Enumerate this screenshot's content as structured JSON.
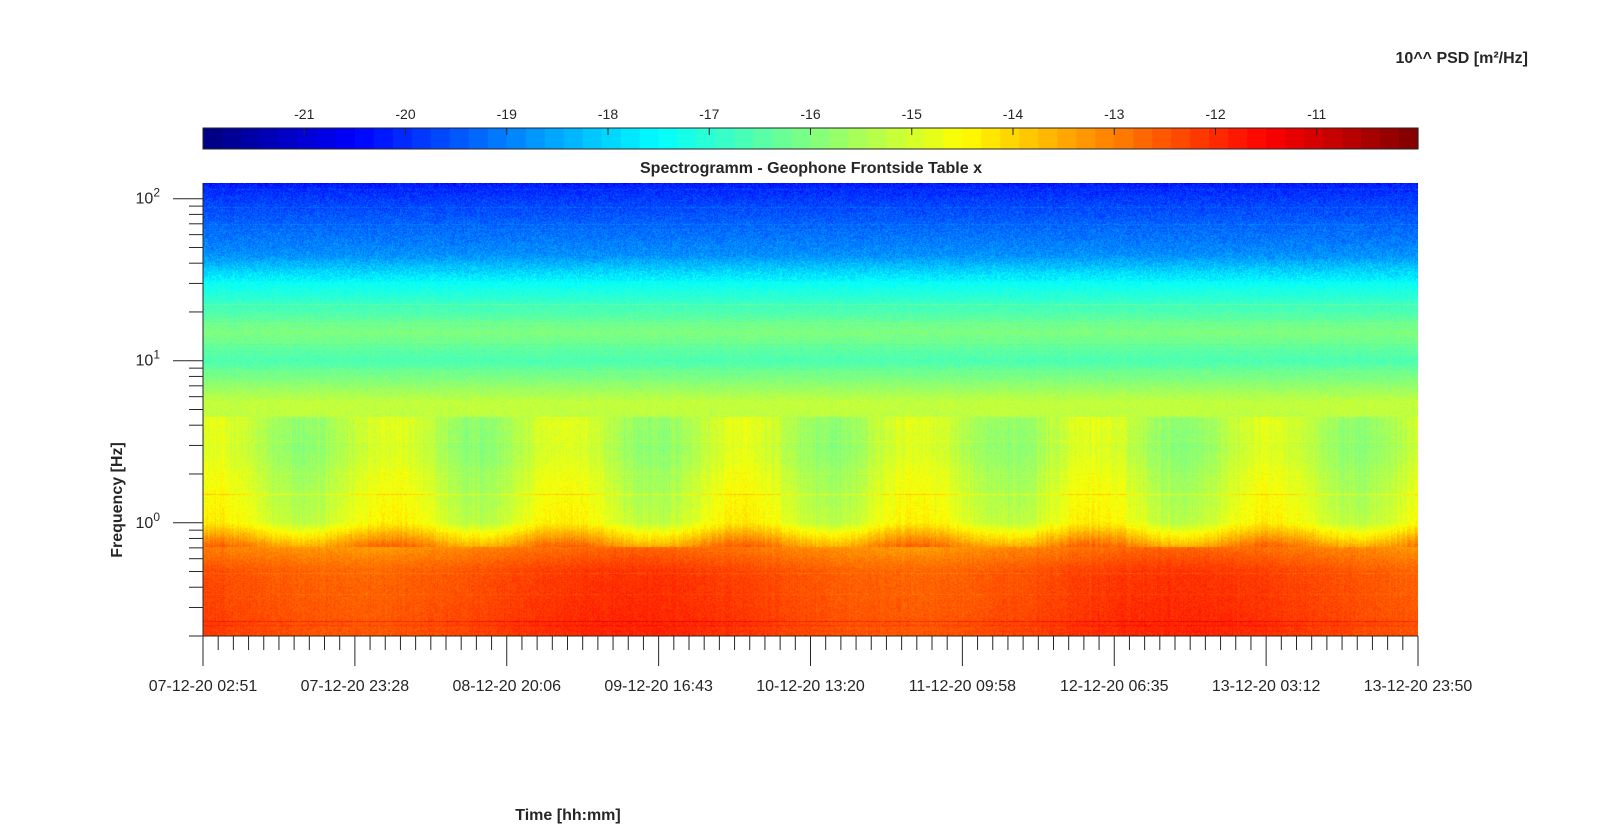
{
  "chart_data": {
    "type": "heatmap",
    "title": "Spectrogramm - Geophone Frontside Table x",
    "xlabel": "Time [hh:mm]",
    "ylabel": "Frequency [Hz]",
    "y_scale": "log",
    "y_range_hz": [
      0.2,
      125
    ],
    "y_tick_labels": [
      {
        "base": "10",
        "exp": "0",
        "value": 1
      },
      {
        "base": "10",
        "exp": "1",
        "value": 10
      },
      {
        "base": "10",
        "exp": "2",
        "value": 100
      }
    ],
    "x_range": [
      "07-12-20 02:51",
      "13-12-20 23:50"
    ],
    "x_tick_labels": [
      "07-12-20 02:51",
      "07-12-20 23:28",
      "08-12-20 20:06",
      "09-12-20 16:43",
      "10-12-20 13:20",
      "11-12-20 09:58",
      "12-12-20 06:35",
      "13-12-20 03:12",
      "13-12-20 23:50"
    ],
    "colorbar": {
      "label": "10^^ PSD [m²/Hz]",
      "range": [
        -22,
        -10
      ],
      "ticks": [
        "-21",
        "-20",
        "-19",
        "-18",
        "-17",
        "-16",
        "-15",
        "-14",
        "-13",
        "-12",
        "-11"
      ],
      "colormap": "jet"
    },
    "psd_profile": [
      {
        "f": 0.2,
        "log_psd": -12.2
      },
      {
        "f": 0.5,
        "log_psd": -12.4
      },
      {
        "f": 0.7,
        "log_psd": -13.0
      },
      {
        "f": 1.0,
        "log_psd": -14.8
      },
      {
        "f": 3.0,
        "log_psd": -15.4
      },
      {
        "f": 5.5,
        "log_psd": -15.2
      },
      {
        "f": 10,
        "log_psd": -16.6
      },
      {
        "f": 15,
        "log_psd": -16.0
      },
      {
        "f": 30,
        "log_psd": -17.4
      },
      {
        "f": 45,
        "log_psd": -18.8
      },
      {
        "f": 100,
        "log_psd": -19.8
      },
      {
        "f": 125,
        "log_psd": -20.2
      }
    ]
  }
}
